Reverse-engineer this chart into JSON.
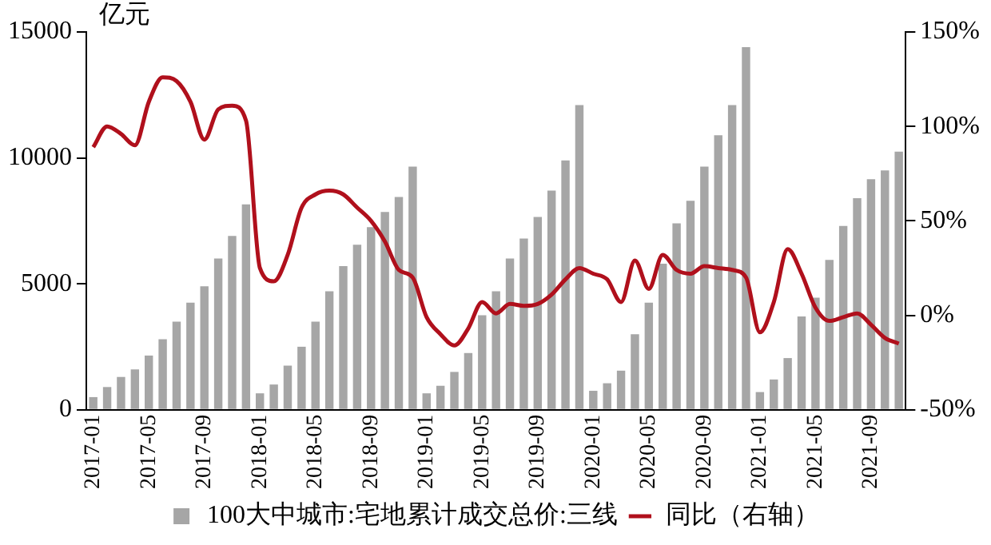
{
  "chart_data": {
    "type": "bar",
    "ylabel": "亿元",
    "categories": [
      "2017-01",
      null,
      null,
      null,
      "2017-05",
      null,
      null,
      null,
      "2017-09",
      null,
      null,
      null,
      "2018-01",
      null,
      null,
      null,
      "2018-05",
      null,
      null,
      null,
      "2018-09",
      null,
      null,
      null,
      "2019-01",
      null,
      null,
      null,
      "2019-05",
      null,
      null,
      null,
      "2019-09",
      null,
      null,
      null,
      "2020-01",
      null,
      null,
      null,
      "2020-05",
      null,
      null,
      null,
      "2020-09",
      null,
      null,
      null,
      "2021-01",
      null,
      null,
      null,
      "2021-05",
      null,
      null,
      null,
      "2021-09",
      null,
      null
    ],
    "series": [
      {
        "name": "100大中城市:宅地累计成交总价:三线",
        "color": "#a6a6a6",
        "values": [
          500,
          900,
          1300,
          1600,
          2150,
          2800,
          3500,
          4250,
          4900,
          6000,
          6900,
          8150,
          650,
          1000,
          1750,
          2500,
          3500,
          4700,
          5700,
          6550,
          7250,
          7850,
          8450,
          9650,
          650,
          950,
          1500,
          2250,
          3750,
          4700,
          6000,
          6800,
          7650,
          8700,
          9900,
          12100,
          750,
          1050,
          1550,
          3000,
          4250,
          5800,
          7400,
          8300,
          9650,
          10900,
          12100,
          14400,
          700,
          1200,
          2050,
          3700,
          4450,
          5950,
          7300,
          8400,
          9150,
          9500,
          10250
        ]
      },
      {
        "name": "同比（右轴）",
        "type": "line",
        "axis": "y2",
        "color": "#b0101c",
        "values": [
          89,
          100,
          96,
          90,
          113,
          126,
          124,
          113,
          93,
          109,
          111,
          103,
          25,
          18,
          32,
          57,
          64,
          66,
          64,
          57,
          50,
          39,
          24,
          20,
          -1,
          -10,
          -16,
          -7,
          7,
          1,
          6,
          5,
          6,
          11,
          19,
          25,
          22,
          19,
          7,
          29,
          14,
          32,
          24,
          22,
          26,
          25,
          24,
          20,
          -9,
          7,
          35,
          22,
          4,
          -3,
          -1,
          1,
          -5,
          -12,
          -15
        ]
      }
    ],
    "ylim": [
      0,
      15000
    ],
    "yticks": [
      0,
      5000,
      10000,
      15000
    ],
    "y2lim": [
      -50,
      150
    ],
    "y2ticks": [
      {
        "value": -50,
        "label": "-50%"
      },
      {
        "value": 0,
        "label": "0%"
      },
      {
        "value": 50,
        "label": "50%"
      },
      {
        "value": 100,
        "label": "100%"
      },
      {
        "value": 150,
        "label": "150%"
      }
    ],
    "legend": "bottom",
    "marker": "none"
  }
}
